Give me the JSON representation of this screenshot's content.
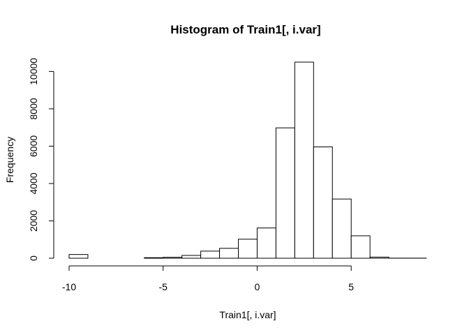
{
  "chart_data": {
    "type": "bar",
    "title": "Histogram of Train1[, i.var]",
    "xlabel": "Train1[, i.var]",
    "ylabel": "Frequency",
    "bin_width": 1,
    "bins": [
      {
        "x0": -10,
        "x1": -9,
        "count": 200
      },
      {
        "x0": -9,
        "x1": -8,
        "count": 0
      },
      {
        "x0": -8,
        "x1": -7,
        "count": 0
      },
      {
        "x0": -7,
        "x1": -6,
        "count": 0
      },
      {
        "x0": -6,
        "x1": -5,
        "count": 30
      },
      {
        "x0": -5,
        "x1": -4,
        "count": 50
      },
      {
        "x0": -4,
        "x1": -3,
        "count": 150
      },
      {
        "x0": -3,
        "x1": -2,
        "count": 380
      },
      {
        "x0": -2,
        "x1": -1,
        "count": 530
      },
      {
        "x0": -1,
        "x1": 0,
        "count": 1020
      },
      {
        "x0": 0,
        "x1": 1,
        "count": 1620
      },
      {
        "x0": 1,
        "x1": 2,
        "count": 6980
      },
      {
        "x0": 2,
        "x1": 3,
        "count": 10500
      },
      {
        "x0": 3,
        "x1": 4,
        "count": 5960
      },
      {
        "x0": 4,
        "x1": 5,
        "count": 3170
      },
      {
        "x0": 5,
        "x1": 6,
        "count": 1200
      },
      {
        "x0": 6,
        "x1": 7,
        "count": 60
      },
      {
        "x0": 7,
        "x1": 8,
        "count": 5
      },
      {
        "x0": 8,
        "x1": 9,
        "count": 5
      }
    ],
    "xlim": [
      -10,
      9
    ],
    "ylim": [
      0,
      10500
    ],
    "x_ticks": [
      -10,
      -5,
      0,
      5
    ],
    "x_tick_labels": [
      "-10",
      "-5",
      "0",
      "5"
    ],
    "y_ticks": [
      0,
      2000,
      4000,
      6000,
      8000,
      10000
    ],
    "y_tick_labels": [
      "0",
      "2000",
      "4000",
      "6000",
      "8000",
      "10000"
    ],
    "grid": false
  }
}
